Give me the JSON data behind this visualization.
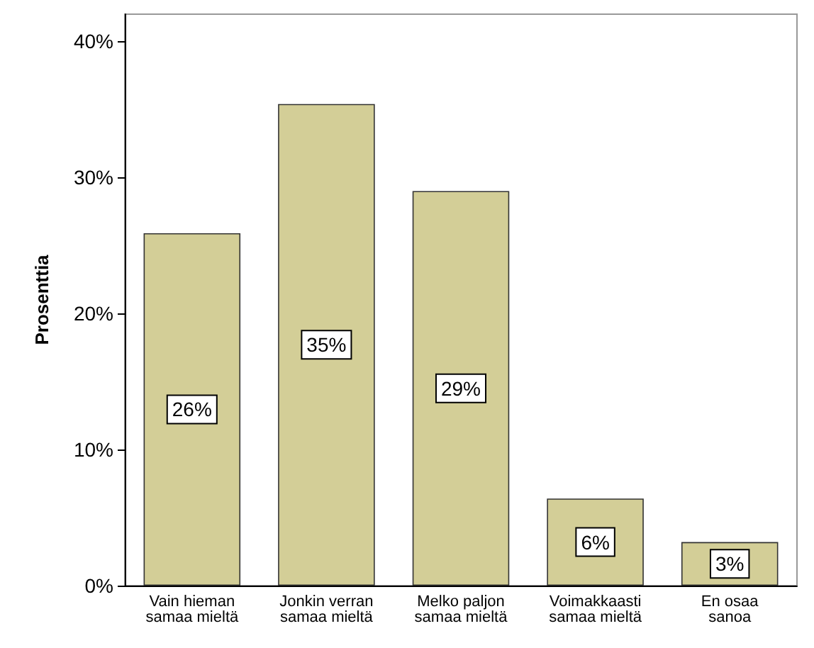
{
  "chart_data": {
    "type": "bar",
    "ylabel": "Prosenttia",
    "categories": [
      "Vain hieman\nsamaa mieltä",
      "Jonkin verran\nsamaa mieltä",
      "Melko paljon\nsamaa mieltä",
      "Voimakkaasti\nsamaa mieltä",
      "En osaa\nsanoa"
    ],
    "values": [
      25.9,
      35.4,
      29.0,
      6.4,
      3.2
    ],
    "value_labels": [
      "26%",
      "35%",
      "29%",
      "6%",
      "3%"
    ],
    "color": "#d3ce97",
    "ylim": [
      0,
      42
    ],
    "yticks": [
      {
        "value": 0,
        "label": "0%"
      },
      {
        "value": 10,
        "label": "10%"
      },
      {
        "value": 20,
        "label": "20%"
      },
      {
        "value": 30,
        "label": "30%"
      },
      {
        "value": 40,
        "label": "40%"
      }
    ],
    "grid": false
  }
}
